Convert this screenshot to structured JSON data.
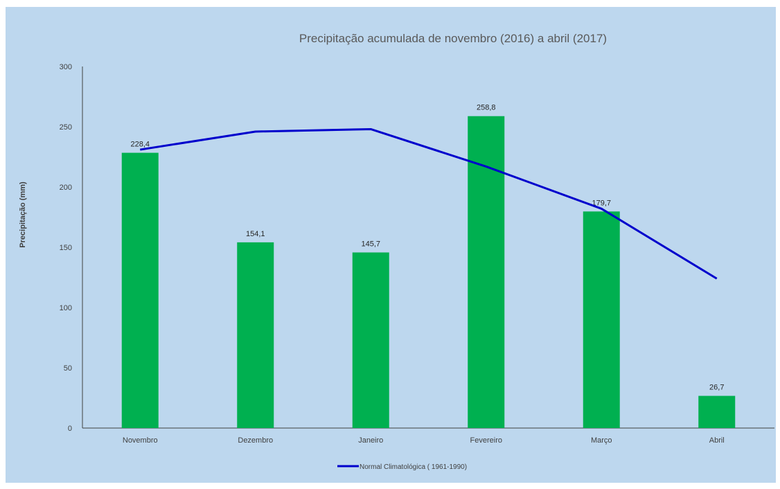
{
  "chart_data": {
    "type": "bar",
    "title": "Precipitação acumulada de novembro (2016) a abril (2017)",
    "xlabel": "",
    "ylabel": "Precipitação (mm)",
    "ylim": [
      0,
      300
    ],
    "yticks": [
      "0",
      "50",
      "100",
      "150",
      "200",
      "250",
      "300"
    ],
    "categories": [
      "Novembro",
      "Dezembro",
      "Janeiro",
      "Fevereiro",
      "Março",
      "Abril"
    ],
    "series": [
      {
        "type": "bar",
        "values": [
          228.4,
          154.1,
          145.7,
          258.8,
          179.7,
          26.7
        ],
        "labels": [
          "228,4",
          "154,1",
          "145,7",
          "258,8",
          "179,7",
          "26,7"
        ]
      },
      {
        "type": "line",
        "name": "Normal Climatológica ( 1961-1990)",
        "values": [
          231,
          246,
          248,
          217,
          182,
          124
        ]
      }
    ],
    "grid": false,
    "legend": "bottom",
    "colors": {
      "bar": "#00b050",
      "line": "#0000cc",
      "background": "#bdd7ee"
    }
  }
}
